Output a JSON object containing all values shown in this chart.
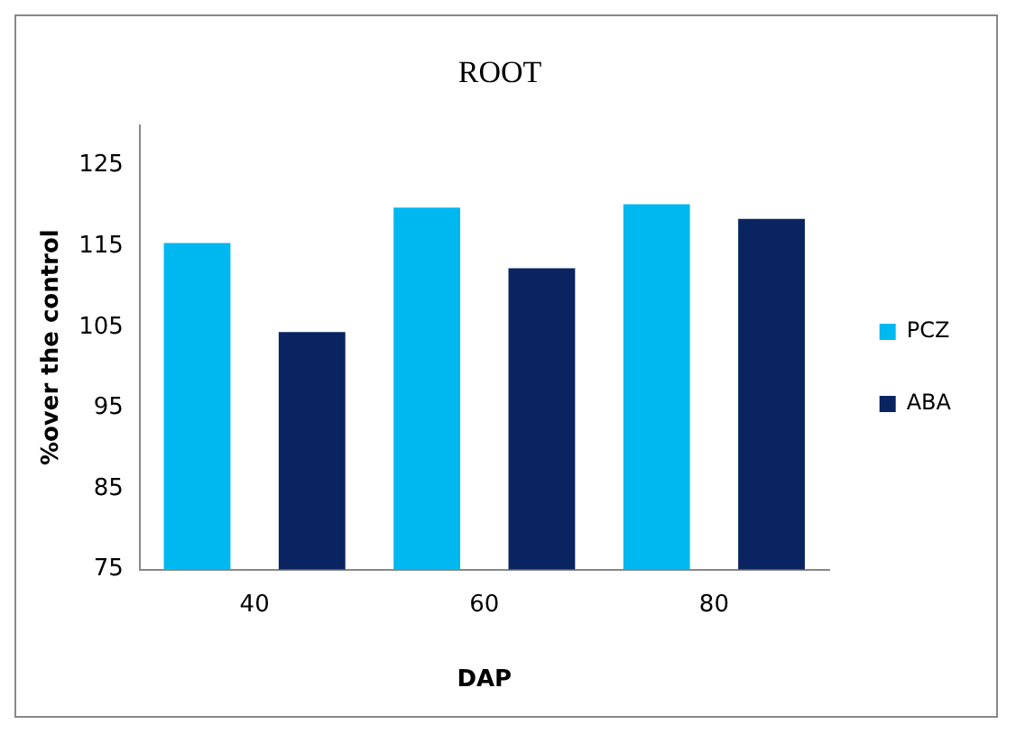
{
  "chart_data": {
    "type": "bar",
    "title": "ROOT",
    "xlabel": "DAP",
    "ylabel": "%over the control",
    "categories": [
      "40",
      "60",
      "80"
    ],
    "series": [
      {
        "name": "PCZ",
        "color": "#00b8f0",
        "values": [
          115.4,
          119.8,
          120.2
        ]
      },
      {
        "name": "ABA",
        "color": "#0a2461",
        "values": [
          104.4,
          112.3,
          118.4
        ]
      }
    ],
    "ylim": [
      75,
      130
    ],
    "yticks": [
      75,
      85,
      95,
      105,
      115,
      125
    ],
    "grid": false,
    "legend": "right"
  }
}
